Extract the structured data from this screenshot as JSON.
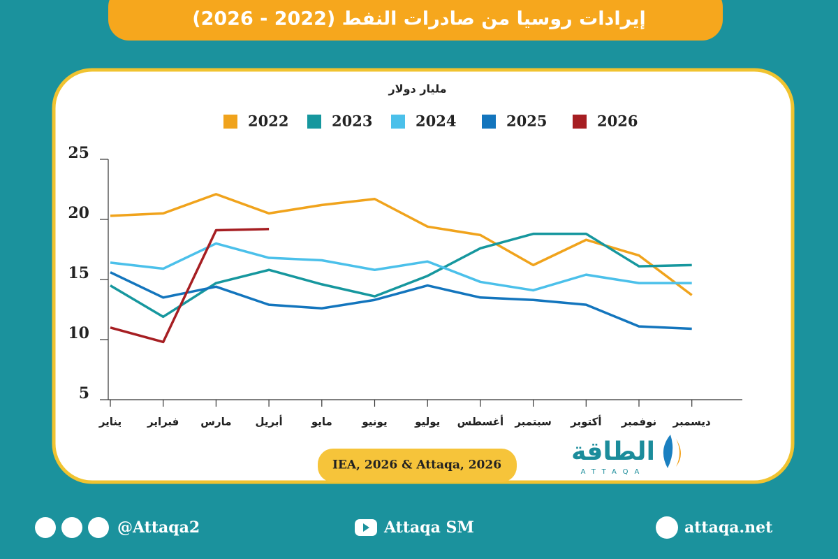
{
  "chart_data": {
    "type": "line",
    "title": "إيرادات روسيا من صادرات النفط (2022 - 2026)",
    "y_label": "مليار دولار",
    "source": "IEA, 2026 & Attaqa, 2026",
    "categories": [
      "يناير",
      "فبراير",
      "مارس",
      "أبريل",
      "مايو",
      "يونيو",
      "يوليو",
      "أغسطس",
      "سبتمبر",
      "أكتوبر",
      "نوفمبر",
      "ديسمبر"
    ],
    "series": [
      {
        "name": "2022",
        "color": "#f0a31c",
        "values": [
          20.3,
          20.5,
          22.1,
          20.5,
          21.2,
          21.7,
          19.4,
          18.7,
          16.2,
          18.3,
          17.0,
          13.7
        ]
      },
      {
        "name": "2023",
        "color": "#16979e",
        "values": [
          14.5,
          11.9,
          14.7,
          15.8,
          14.6,
          13.6,
          15.3,
          17.6,
          18.8,
          18.8,
          16.1,
          16.2
        ]
      },
      {
        "name": "2024",
        "color": "#4bc0ea",
        "values": [
          16.4,
          15.9,
          18.0,
          16.8,
          16.6,
          15.8,
          16.5,
          14.8,
          14.1,
          15.4,
          14.7,
          14.7
        ]
      },
      {
        "name": "2025",
        "color": "#1375bd",
        "values": [
          15.6,
          13.5,
          14.4,
          12.9,
          12.6,
          13.3,
          14.5,
          13.5,
          13.3,
          12.9,
          11.1,
          10.9
        ]
      },
      {
        "name": "2026",
        "color": "#a61e22",
        "values": [
          11.0,
          9.8,
          19.1,
          19.2,
          null,
          null,
          null,
          null,
          null,
          null,
          null,
          null
        ]
      }
    ],
    "ylim": [
      5,
      25
    ],
    "yticks": [
      5,
      10,
      15,
      20,
      25
    ],
    "grid": false
  },
  "logo": {
    "name": "الطاقة",
    "latin": "ATTAQA"
  },
  "footer": {
    "social": "@Attaqa2",
    "youtube": "Attaqa SM",
    "website": "attaqa.net"
  }
}
